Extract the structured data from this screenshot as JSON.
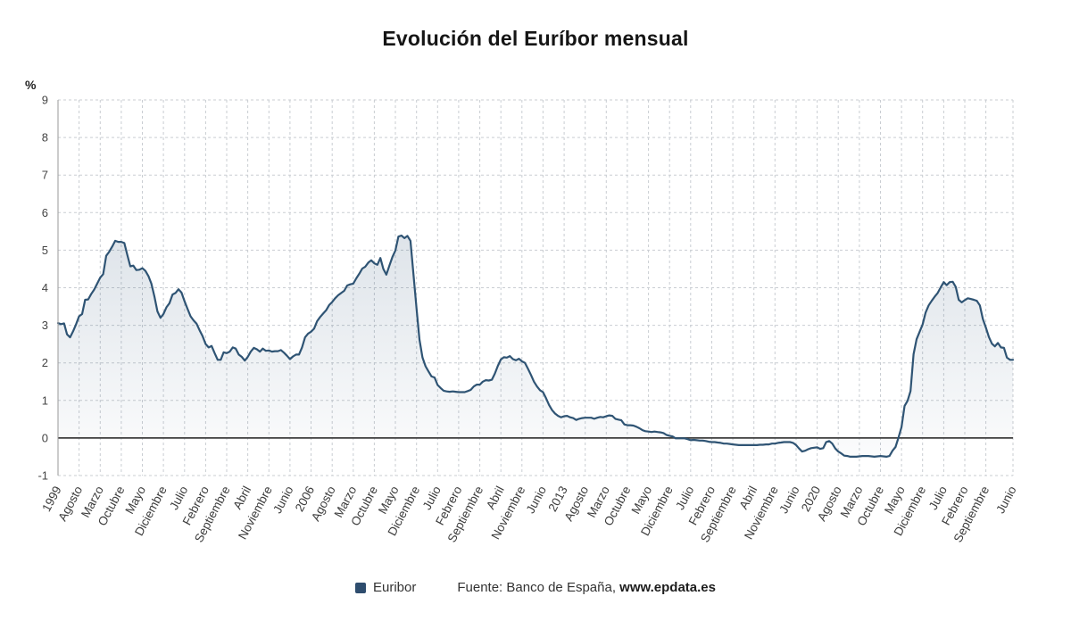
{
  "title": "Evolución del Euríbor mensual",
  "y_axis": {
    "unit": "%"
  },
  "legend": {
    "label": "Euribor",
    "color": "#2e4d6e"
  },
  "source": {
    "prefix": "Fuente: Banco de España,",
    "site": "www.epdata.es"
  },
  "chart_data": {
    "type": "area",
    "series_name": "Euribor",
    "title": "Evolución del Euríbor mensual",
    "x_unit": "month",
    "ylim": [
      -1,
      9
    ],
    "y_ticks": [
      9,
      8,
      7,
      6,
      5,
      4,
      3,
      2,
      1,
      0,
      -1
    ],
    "grid": "dashed",
    "legend_position": "bottom",
    "line_color": "#2f5474",
    "area_top_color": "rgba(51,86,122,0.16)",
    "area_bottom_color": "rgba(51,86,122,0.02)",
    "zero_line_color": "#3f3f3f",
    "x_ticks": [
      [
        0,
        "1999"
      ],
      [
        7,
        "Agosto"
      ],
      [
        14,
        "Marzo"
      ],
      [
        21,
        "Octubre"
      ],
      [
        28,
        "Mayo"
      ],
      [
        35,
        "Diciembre"
      ],
      [
        42,
        "Julio"
      ],
      [
        49,
        "Febrero"
      ],
      [
        56,
        "Septiembre"
      ],
      [
        63,
        "Abril"
      ],
      [
        70,
        "Noviembre"
      ],
      [
        77,
        "Junio"
      ],
      [
        84,
        "2006"
      ],
      [
        91,
        "Agosto"
      ],
      [
        98,
        "Marzo"
      ],
      [
        105,
        "Octubre"
      ],
      [
        112,
        "Mayo"
      ],
      [
        119,
        "Diciembre"
      ],
      [
        126,
        "Julio"
      ],
      [
        133,
        "Febrero"
      ],
      [
        140,
        "Septiembre"
      ],
      [
        147,
        "Abril"
      ],
      [
        154,
        "Noviembre"
      ],
      [
        161,
        "Junio"
      ],
      [
        168,
        "2013"
      ],
      [
        175,
        "Agosto"
      ],
      [
        182,
        "Marzo"
      ],
      [
        189,
        "Octubre"
      ],
      [
        196,
        "Mayo"
      ],
      [
        203,
        "Diciembre"
      ],
      [
        210,
        "Julio"
      ],
      [
        217,
        "Febrero"
      ],
      [
        224,
        "Septiembre"
      ],
      [
        231,
        "Abril"
      ],
      [
        238,
        "Noviembre"
      ],
      [
        245,
        "Junio"
      ],
      [
        252,
        "2020"
      ],
      [
        259,
        "Agosto"
      ],
      [
        266,
        "Marzo"
      ],
      [
        273,
        "Octubre"
      ],
      [
        280,
        "Mayo"
      ],
      [
        287,
        "Diciembre"
      ],
      [
        294,
        "Julio"
      ],
      [
        301,
        "Febrero"
      ],
      [
        308,
        "Septiembre"
      ],
      [
        317,
        "Junio"
      ]
    ],
    "values": [
      3.06,
      3.03,
      3.05,
      2.76,
      2.68,
      2.84,
      3.03,
      3.24,
      3.3,
      3.68,
      3.69,
      3.83,
      3.95,
      4.11,
      4.27,
      4.36,
      4.85,
      4.96,
      5.1,
      5.25,
      5.22,
      5.22,
      5.19,
      4.88,
      4.57,
      4.59,
      4.47,
      4.48,
      4.52,
      4.45,
      4.31,
      4.11,
      3.77,
      3.37,
      3.2,
      3.3,
      3.48,
      3.59,
      3.82,
      3.86,
      3.96,
      3.87,
      3.64,
      3.44,
      3.24,
      3.13,
      3.04,
      2.87,
      2.71,
      2.5,
      2.41,
      2.45,
      2.26,
      2.08,
      2.08,
      2.28,
      2.26,
      2.3,
      2.41,
      2.38,
      2.22,
      2.16,
      2.06,
      2.16,
      2.3,
      2.4,
      2.36,
      2.3,
      2.38,
      2.32,
      2.33,
      2.3,
      2.31,
      2.31,
      2.34,
      2.27,
      2.19,
      2.1,
      2.17,
      2.22,
      2.22,
      2.41,
      2.68,
      2.78,
      2.83,
      2.91,
      3.11,
      3.22,
      3.31,
      3.4,
      3.54,
      3.62,
      3.72,
      3.8,
      3.86,
      3.92,
      4.06,
      4.09,
      4.11,
      4.25,
      4.37,
      4.51,
      4.56,
      4.67,
      4.73,
      4.65,
      4.61,
      4.79,
      4.5,
      4.35,
      4.59,
      4.82,
      4.99,
      5.36,
      5.39,
      5.32,
      5.38,
      5.25,
      4.35,
      3.45,
      2.62,
      2.14,
      1.91,
      1.77,
      1.64,
      1.61,
      1.41,
      1.33,
      1.26,
      1.24,
      1.23,
      1.24,
      1.23,
      1.22,
      1.22,
      1.22,
      1.25,
      1.28,
      1.37,
      1.42,
      1.42,
      1.5,
      1.54,
      1.53,
      1.55,
      1.71,
      1.92,
      2.09,
      2.15,
      2.14,
      2.18,
      2.1,
      2.07,
      2.11,
      2.04,
      2.0,
      1.84,
      1.68,
      1.5,
      1.37,
      1.27,
      1.22,
      1.06,
      0.88,
      0.74,
      0.65,
      0.59,
      0.55,
      0.58,
      0.59,
      0.55,
      0.53,
      0.48,
      0.51,
      0.53,
      0.54,
      0.54,
      0.54,
      0.51,
      0.54,
      0.56,
      0.55,
      0.58,
      0.6,
      0.59,
      0.51,
      0.49,
      0.47,
      0.36,
      0.34,
      0.34,
      0.33,
      0.3,
      0.26,
      0.21,
      0.18,
      0.17,
      0.16,
      0.17,
      0.16,
      0.15,
      0.13,
      0.08,
      0.06,
      0.04,
      -0.01,
      -0.01,
      -0.01,
      -0.01,
      -0.03,
      -0.06,
      -0.05,
      -0.06,
      -0.07,
      -0.07,
      -0.08,
      -0.1,
      -0.11,
      -0.11,
      -0.12,
      -0.13,
      -0.15,
      -0.15,
      -0.16,
      -0.17,
      -0.18,
      -0.19,
      -0.19,
      -0.19,
      -0.19,
      -0.19,
      -0.19,
      -0.19,
      -0.18,
      -0.18,
      -0.17,
      -0.17,
      -0.15,
      -0.15,
      -0.13,
      -0.12,
      -0.11,
      -0.11,
      -0.11,
      -0.13,
      -0.19,
      -0.28,
      -0.36,
      -0.34,
      -0.3,
      -0.27,
      -0.26,
      -0.25,
      -0.29,
      -0.27,
      -0.11,
      -0.08,
      -0.15,
      -0.28,
      -0.36,
      -0.41,
      -0.47,
      -0.48,
      -0.5,
      -0.5,
      -0.5,
      -0.49,
      -0.48,
      -0.48,
      -0.48,
      -0.49,
      -0.5,
      -0.49,
      -0.48,
      -0.49,
      -0.5,
      -0.48,
      -0.34,
      -0.24,
      0.01,
      0.29,
      0.85,
      0.99,
      1.25,
      2.23,
      2.63,
      2.83,
      3.02,
      3.34,
      3.53,
      3.65,
      3.76,
      3.86,
      4.01,
      4.15,
      4.07,
      4.15,
      4.16,
      4.02,
      3.68,
      3.61,
      3.67,
      3.72,
      3.7,
      3.68,
      3.65,
      3.53,
      3.17,
      2.94,
      2.69,
      2.51,
      2.44,
      2.53,
      2.41,
      2.4,
      2.14,
      2.08,
      2.08
    ]
  }
}
